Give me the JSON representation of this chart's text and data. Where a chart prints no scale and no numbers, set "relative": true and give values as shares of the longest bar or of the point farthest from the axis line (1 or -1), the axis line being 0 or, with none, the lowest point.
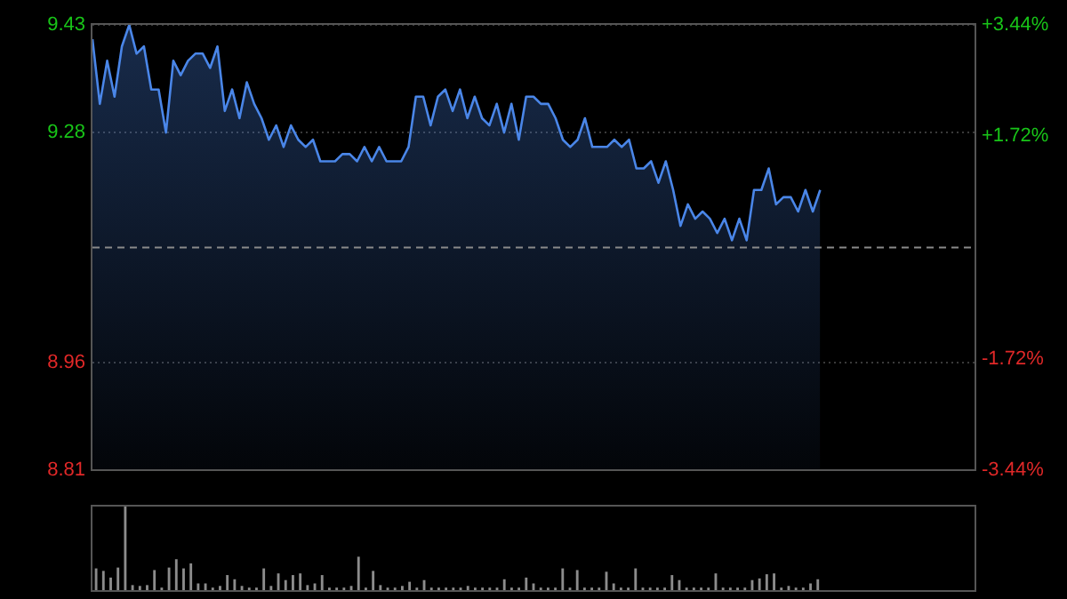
{
  "chart_data": [
    {
      "type": "area",
      "color": "#4a86e8",
      "categories": [
        null,
        null,
        null,
        null,
        null,
        null,
        null,
        null,
        null,
        null,
        null,
        null,
        null,
        null,
        null,
        null,
        null,
        null,
        null,
        null,
        null,
        null,
        null,
        null,
        null,
        null,
        null,
        null,
        null,
        null,
        null,
        null,
        null,
        null,
        null,
        null,
        null,
        null,
        null,
        null,
        null,
        null,
        null,
        null,
        null,
        null,
        null,
        null,
        null,
        null,
        null,
        null,
        null,
        null,
        null,
        null,
        null,
        null,
        null,
        null,
        null,
        null,
        null,
        null,
        null,
        null,
        null,
        null,
        null,
        null,
        null,
        null,
        null,
        null,
        null,
        null,
        null,
        null,
        null,
        null,
        null,
        null,
        null,
        null,
        null,
        null,
        null,
        null,
        null,
        null,
        null,
        null,
        null,
        null,
        null,
        null,
        null,
        null,
        null,
        null,
        null,
        null,
        null,
        null,
        null,
        null,
        null,
        null,
        null,
        null,
        null,
        null,
        null,
        null,
        null,
        null,
        null,
        null,
        null,
        null,
        null
      ],
      "values": [
        9.41,
        9.32,
        9.38,
        9.33,
        9.4,
        9.43,
        9.39,
        9.4,
        9.34,
        9.34,
        9.28,
        9.38,
        9.36,
        9.38,
        9.39,
        9.39,
        9.37,
        9.4,
        9.31,
        9.34,
        9.3,
        9.35,
        9.32,
        9.3,
        9.27,
        9.29,
        9.26,
        9.29,
        9.27,
        9.26,
        9.27,
        9.24,
        9.24,
        9.24,
        9.25,
        9.25,
        9.24,
        9.26,
        9.24,
        9.26,
        9.24,
        9.24,
        9.24,
        9.26,
        9.33,
        9.33,
        9.29,
        9.33,
        9.34,
        9.31,
        9.34,
        9.3,
        9.33,
        9.3,
        9.29,
        9.32,
        9.28,
        9.32,
        9.27,
        9.33,
        9.33,
        9.32,
        9.32,
        9.3,
        9.27,
        9.26,
        9.27,
        9.3,
        9.26,
        9.26,
        9.26,
        9.27,
        9.26,
        9.27,
        9.23,
        9.23,
        9.24,
        9.21,
        9.24,
        9.2,
        9.15,
        9.18,
        9.16,
        9.17,
        9.16,
        9.14,
        9.16,
        9.13,
        9.16,
        9.13,
        9.2,
        9.2,
        9.23,
        9.18,
        9.19,
        9.19,
        9.17,
        9.2,
        9.17,
        9.2,
        null,
        null,
        null,
        null,
        null,
        null,
        null,
        null,
        null,
        null,
        null,
        null,
        null,
        null,
        null,
        null,
        null,
        null,
        null,
        null,
        null
      ],
      "ylim": [
        8.81,
        9.43
      ],
      "yticks": [
        9.43,
        9.28,
        8.96,
        8.81
      ],
      "y2lim": [
        -3.44,
        3.44
      ],
      "y2ticks": [
        {
          "value": 3.44,
          "label": "+3.44%"
        },
        {
          "value": 1.72,
          "label": "+1.72%"
        },
        {
          "value": -1.72,
          "label": "-1.72%"
        },
        {
          "value": -3.44,
          "label": "-3.44%"
        }
      ],
      "ref_lines": [
        {
          "axis": "y",
          "value": 9.12,
          "line_style": "dashed",
          "color": "#8a8a8a"
        }
      ],
      "grid": "y",
      "tick_labels": "y"
    },
    {
      "type": "bar",
      "color": "#8c8c8c",
      "relative": true,
      "tick_labels": false,
      "categories": [
        null,
        null,
        null,
        null,
        null,
        null,
        null,
        null,
        null,
        null,
        null,
        null,
        null,
        null,
        null,
        null,
        null,
        null,
        null,
        null,
        null,
        null,
        null,
        null,
        null,
        null,
        null,
        null,
        null,
        null,
        null,
        null,
        null,
        null,
        null,
        null,
        null,
        null,
        null,
        null,
        null,
        null,
        null,
        null,
        null,
        null,
        null,
        null,
        null,
        null,
        null,
        null,
        null,
        null,
        null,
        null,
        null,
        null,
        null,
        null,
        null,
        null,
        null,
        null,
        null,
        null,
        null,
        null,
        null,
        null,
        null,
        null,
        null,
        null,
        null,
        null,
        null,
        null,
        null,
        null,
        null,
        null,
        null,
        null,
        null,
        null,
        null,
        null,
        null,
        null,
        null,
        null,
        null,
        null,
        null,
        null,
        null,
        null,
        null,
        null,
        null,
        null,
        null,
        null,
        null,
        null,
        null,
        null,
        null,
        null,
        null,
        null,
        null,
        null,
        null,
        null,
        null,
        null,
        null,
        null,
        null
      ],
      "values": [
        0.26,
        0.23,
        0.15,
        0.27,
        1,
        0.06,
        0.05,
        0.06,
        0.24,
        0.03,
        0.27,
        0.37,
        0.26,
        0.32,
        0.08,
        0.08,
        0.03,
        0.05,
        0.18,
        0.13,
        0.05,
        0.03,
        0.03,
        0.26,
        0.05,
        0.2,
        0.12,
        0.18,
        0.2,
        0.06,
        0.08,
        0.18,
        0.03,
        0.03,
        0.03,
        0.05,
        0.4,
        0.03,
        0.23,
        0.06,
        0.03,
        0.03,
        0.05,
        0.1,
        0.03,
        0.12,
        0.03,
        0.03,
        0.03,
        0.03,
        0.03,
        0.05,
        0.03,
        0.03,
        0.03,
        0.03,
        0.13,
        0.03,
        0.03,
        0.15,
        0.08,
        0.03,
        0.03,
        0.03,
        0.26,
        0.03,
        0.24,
        0.03,
        0.03,
        0.03,
        0.22,
        0.08,
        0.03,
        0.03,
        0.26,
        0.03,
        0.03,
        0.03,
        0.03,
        0.18,
        0.12,
        0.03,
        0.03,
        0.03,
        0.03,
        0.2,
        0.03,
        0.03,
        0.03,
        0.03,
        0.12,
        0.14,
        0.19,
        0.2,
        0.03,
        0.05,
        0.03,
        0.03,
        0.08,
        0.13,
        null,
        null,
        null,
        null,
        null,
        null,
        null,
        null,
        null,
        null,
        null,
        null,
        null,
        null,
        null,
        null,
        null,
        null,
        null,
        null,
        null
      ]
    }
  ]
}
